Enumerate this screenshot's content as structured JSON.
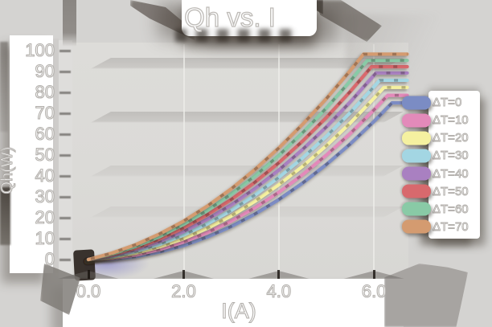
{
  "title": {
    "text": "Qh vs. I"
  },
  "axes": {
    "x_label": "I(A)",
    "y_label": "Qh(W)",
    "x_ticks": [
      {
        "label": "0.0",
        "value": 0
      },
      {
        "label": "2.0",
        "value": 2
      },
      {
        "label": "4.0",
        "value": 4
      },
      {
        "label": "6.0",
        "value": 6
      }
    ],
    "y_ticks": [
      {
        "label": "0",
        "value": 0
      },
      {
        "label": "10",
        "value": 10
      },
      {
        "label": "20",
        "value": 20
      },
      {
        "label": "30",
        "value": 30
      },
      {
        "label": "40",
        "value": 40
      },
      {
        "label": "50",
        "value": 50
      },
      {
        "label": "60",
        "value": 60
      },
      {
        "label": "70",
        "value": 70
      },
      {
        "label": "80",
        "value": 80
      },
      {
        "label": "90",
        "value": 90
      },
      {
        "label": "100",
        "value": 100
      }
    ]
  },
  "legend": {
    "items": [
      {
        "label": "ΔT=0",
        "color": "#7b8cc4"
      },
      {
        "label": "ΔT=10",
        "color": "#e38aba"
      },
      {
        "label": "ΔT=20",
        "color": "#f5f1a0"
      },
      {
        "label": "ΔT=30",
        "color": "#a3d6e3"
      },
      {
        "label": "ΔT=40",
        "color": "#a980c1"
      },
      {
        "label": "ΔT=50",
        "color": "#d8696d"
      },
      {
        "label": "ΔT=60",
        "color": "#89caa6"
      },
      {
        "label": "ΔT=70",
        "color": "#d49b70"
      }
    ]
  },
  "chart_data": {
    "type": "line",
    "title": "Qh vs. I",
    "xlabel": "I(A)",
    "ylabel": "Qh(W)",
    "xlim": [
      -0.35,
      6.7
    ],
    "ylim": [
      -8,
      103
    ],
    "x_tick_values": [
      0,
      2,
      4,
      6
    ],
    "y_tick_values": [
      0,
      10,
      20,
      30,
      40,
      50,
      60,
      70,
      80,
      90,
      100
    ],
    "grid": "faint horizontal bands",
    "legend_position": "right",
    "series": [
      {
        "name": "ΔT=0",
        "delta_t": 0,
        "color": "#7b8cc4",
        "points": [
          [
            0,
            0
          ],
          [
            0.5,
            0.2
          ],
          [
            1,
            1.4
          ],
          [
            1.5,
            3.6
          ],
          [
            2,
            6.7
          ],
          [
            2.5,
            10.8
          ],
          [
            3,
            15.8
          ],
          [
            3.5,
            21.8
          ],
          [
            4,
            28.7
          ],
          [
            4.5,
            36.6
          ],
          [
            5,
            45.5
          ],
          [
            5.5,
            55.3
          ],
          [
            6,
            66.1
          ],
          [
            6.38,
            75.0
          ],
          [
            6.7,
            75.0
          ]
        ]
      },
      {
        "name": "ΔT=10",
        "delta_t": 10,
        "color": "#e38aba",
        "points": [
          [
            0,
            0
          ],
          [
            0.5,
            0.6
          ],
          [
            1,
            2.2
          ],
          [
            1.5,
            4.8
          ],
          [
            2,
            8.4
          ],
          [
            2.5,
            12.9
          ],
          [
            3,
            18.4
          ],
          [
            3.5,
            24.8
          ],
          [
            4,
            32.2
          ],
          [
            4.5,
            40.6
          ],
          [
            5,
            50.0
          ],
          [
            5.5,
            60.3
          ],
          [
            6,
            71.6
          ],
          [
            6.29,
            78.6
          ],
          [
            6.7,
            78.6
          ]
        ]
      },
      {
        "name": "ΔT=20",
        "delta_t": 20,
        "color": "#f5f1a0",
        "points": [
          [
            0,
            0
          ],
          [
            0.5,
            1.0
          ],
          [
            1,
            3.1
          ],
          [
            1.5,
            6.1
          ],
          [
            2,
            10.0
          ],
          [
            2.5,
            15.0
          ],
          [
            3,
            20.9
          ],
          [
            3.5,
            27.9
          ],
          [
            4,
            35.8
          ],
          [
            4.5,
            44.6
          ],
          [
            5,
            54.5
          ],
          [
            5.5,
            65.3
          ],
          [
            6,
            77.2
          ],
          [
            6.21,
            82.4
          ],
          [
            6.7,
            82.4
          ]
        ]
      },
      {
        "name": "ΔT=30",
        "delta_t": 30,
        "color": "#a3d6e3",
        "points": [
          [
            0,
            0
          ],
          [
            0.5,
            1.4
          ],
          [
            1,
            3.9
          ],
          [
            1.5,
            7.3
          ],
          [
            2,
            11.7
          ],
          [
            2.5,
            17.1
          ],
          [
            3,
            23.5
          ],
          [
            3.5,
            30.9
          ],
          [
            4,
            39.3
          ],
          [
            4.5,
            48.6
          ],
          [
            5,
            59.0
          ],
          [
            5.5,
            70.3
          ],
          [
            6,
            82.7
          ],
          [
            6.12,
            85.8
          ],
          [
            6.7,
            85.8
          ]
        ]
      },
      {
        "name": "ΔT=40",
        "delta_t": 40,
        "color": "#a980c1",
        "points": [
          [
            0,
            0
          ],
          [
            0.5,
            1.9
          ],
          [
            1,
            4.7
          ],
          [
            1.5,
            8.6
          ],
          [
            2,
            13.4
          ],
          [
            2.5,
            19.3
          ],
          [
            3,
            26.1
          ],
          [
            3.5,
            34.0
          ],
          [
            4,
            42.8
          ],
          [
            4.5,
            52.7
          ],
          [
            5,
            63.5
          ],
          [
            5.5,
            75.4
          ],
          [
            6,
            88.2
          ],
          [
            6.04,
            89.3
          ],
          [
            6.7,
            89.3
          ]
        ]
      },
      {
        "name": "ΔT=50",
        "delta_t": 50,
        "color": "#d8696d",
        "points": [
          [
            0,
            0
          ],
          [
            0.5,
            2.3
          ],
          [
            1,
            5.5
          ],
          [
            1.5,
            9.8
          ],
          [
            2,
            15.1
          ],
          [
            2.5,
            21.4
          ],
          [
            3,
            28.7
          ],
          [
            3.5,
            37.0
          ],
          [
            4,
            46.3
          ],
          [
            4.5,
            56.7
          ],
          [
            5,
            68.0
          ],
          [
            5.5,
            80.4
          ],
          [
            5.95,
            92.3
          ],
          [
            6.7,
            92.3
          ]
        ]
      },
      {
        "name": "ΔT=60",
        "delta_t": 60,
        "color": "#89caa6",
        "points": [
          [
            0,
            0
          ],
          [
            0.5,
            2.7
          ],
          [
            1,
            6.3
          ],
          [
            1.5,
            11.0
          ],
          [
            2,
            16.8
          ],
          [
            2.5,
            23.5
          ],
          [
            3,
            31.3
          ],
          [
            3.5,
            40.0
          ],
          [
            4,
            49.8
          ],
          [
            4.5,
            60.7
          ],
          [
            5,
            72.5
          ],
          [
            5.5,
            85.4
          ],
          [
            5.86,
            95.3
          ],
          [
            6.7,
            95.3
          ]
        ]
      },
      {
        "name": "ΔT=70",
        "delta_t": 70,
        "color": "#d49b70",
        "points": [
          [
            0,
            0
          ],
          [
            0.5,
            3.1
          ],
          [
            1,
            7.2
          ],
          [
            1.5,
            12.3
          ],
          [
            2,
            18.4
          ],
          [
            2.5,
            25.6
          ],
          [
            3,
            33.8
          ],
          [
            3.5,
            43.1
          ],
          [
            4,
            53.4
          ],
          [
            4.5,
            64.7
          ],
          [
            5,
            77.0
          ],
          [
            5.5,
            90.4
          ],
          [
            5.78,
            98.3
          ],
          [
            6.7,
            98.3
          ]
        ]
      }
    ]
  }
}
